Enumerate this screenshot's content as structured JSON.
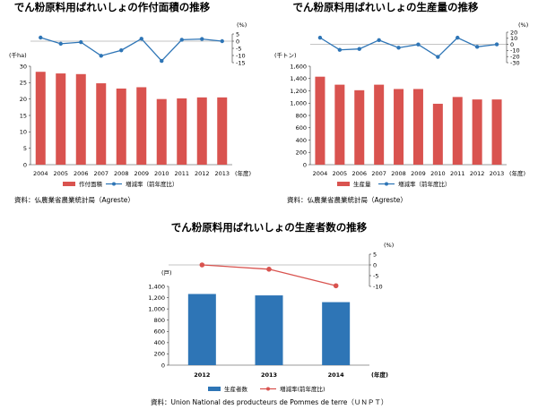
{
  "chart_data": [
    {
      "type": "bar",
      "title": "でん粉原料用ばれいしょの作付面積の推移",
      "categories": [
        "2004",
        "2005",
        "2006",
        "2007",
        "2008",
        "2009",
        "2010",
        "2011",
        "2012",
        "2013"
      ],
      "x_unit": "(年度)",
      "series": [
        {
          "name": "作付面積",
          "type": "bar",
          "axis": "left",
          "color": "#d9534f",
          "values": [
            28.3,
            27.8,
            27.6,
            24.8,
            23.2,
            23.6,
            20.0,
            20.2,
            20.5,
            20.5
          ]
        },
        {
          "name": "増減率（前年度比）",
          "type": "line",
          "axis": "right",
          "color": "#2e75b6",
          "values": [
            2.5,
            -1.8,
            -0.7,
            -10.2,
            -6.4,
            1.7,
            -13.8,
            1.0,
            1.5,
            0.0
          ]
        }
      ],
      "left_axis": {
        "unit": "(千ha)",
        "ylim": [
          0,
          30
        ],
        "ticks": [
          0,
          5,
          10,
          15,
          20,
          25,
          30
        ]
      },
      "right_axis": {
        "unit": "(%)",
        "ylim": [
          -15,
          5
        ],
        "ticks": [
          -15,
          -10,
          -5,
          0,
          5
        ]
      },
      "source": "資料：仏農業省農業統計局（Agreste）"
    },
    {
      "type": "bar",
      "title": "でん粉原料用ばれいしょの生産量の推移",
      "categories": [
        "2004",
        "2005",
        "2006",
        "2007",
        "2008",
        "2009",
        "2010",
        "2011",
        "2012",
        "2013"
      ],
      "x_unit": "(年度)",
      "series": [
        {
          "name": "生産量",
          "type": "bar",
          "axis": "left",
          "color": "#d9534f",
          "values": [
            1430,
            1300,
            1210,
            1300,
            1230,
            1230,
            990,
            1100,
            1060,
            1060
          ]
        },
        {
          "name": "増減率（前年度比）",
          "type": "line",
          "axis": "right",
          "color": "#2e75b6",
          "values": [
            11.0,
            -9.0,
            -7.5,
            7.0,
            -5.5,
            -0.2,
            -20.5,
            11.0,
            -4.0,
            0.0
          ]
        }
      ],
      "left_axis": {
        "unit": "(千トン)",
        "ylim": [
          0,
          1600
        ],
        "ticks": [
          0,
          200,
          400,
          600,
          800,
          1000,
          1200,
          1400,
          1600
        ],
        "tick_labels": [
          "0",
          "200",
          "400",
          "600",
          "800",
          "1,000",
          "1,200",
          "1,400",
          "1,600"
        ]
      },
      "right_axis": {
        "unit": "(%)",
        "ylim": [
          -30,
          20
        ],
        "ticks": [
          -30,
          -20,
          -10,
          0,
          10,
          20
        ]
      },
      "source": "資料：仏農業省農業統計局（Agreste）"
    },
    {
      "type": "bar",
      "title": "でん粉原料用ばれいしょの生産者数の推移",
      "categories": [
        "2012",
        "2013",
        "2014"
      ],
      "x_unit": "(年度)",
      "series": [
        {
          "name": "生産者数",
          "type": "bar",
          "axis": "left",
          "color": "#2e75b6",
          "values": [
            1265,
            1240,
            1120
          ]
        },
        {
          "name": "増減率(前年度比)",
          "type": "line",
          "axis": "right",
          "color": "#d9534f",
          "values": [
            0.0,
            -2.0,
            -9.7
          ]
        }
      ],
      "left_axis": {
        "unit": "(戸)",
        "ylim": [
          0,
          1400
        ],
        "ticks": [
          0,
          200,
          400,
          600,
          800,
          1000,
          1200,
          1400
        ],
        "tick_labels": [
          "0",
          "200",
          "400",
          "600",
          "800",
          "1,000",
          "1,200",
          "1,400"
        ]
      },
      "right_axis": {
        "unit": "(%)",
        "ylim": [
          -10,
          5
        ],
        "ticks": [
          -10,
          -5,
          0,
          5
        ]
      },
      "source": "資料：Union National des producteurs de Pommes de terre（ＵＮＰＴ）"
    }
  ]
}
